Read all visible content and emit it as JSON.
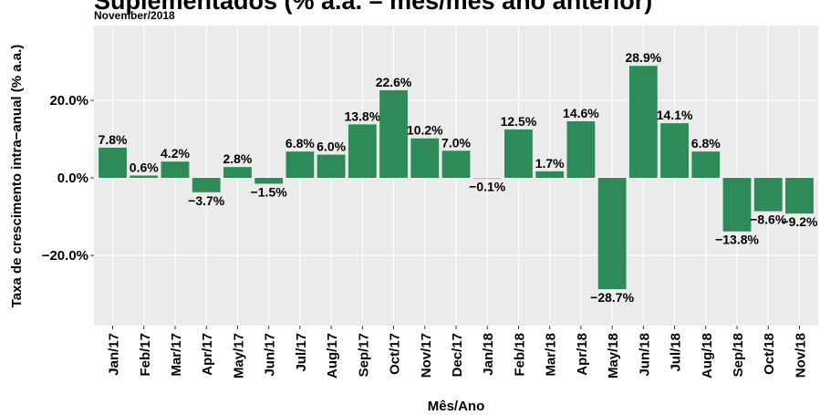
{
  "chart_data": {
    "type": "bar",
    "title": "Suplementados (% a.a. – mês/mês ano anterior)",
    "subtitle": "November/2018",
    "x_label": "Mês/Ano",
    "y_label": "Taxa de crescimento intra−anual (% a.a.)",
    "categories": [
      "Jan/17",
      "Feb/17",
      "Mar/17",
      "Apr/17",
      "May/17",
      "Jun/17",
      "Jul/17",
      "Aug/17",
      "Sep/17",
      "Oct/17",
      "Nov/17",
      "Dec/17",
      "Jan/18",
      "Feb/18",
      "Mar/18",
      "Apr/18",
      "May/18",
      "Jun/18",
      "Jul/18",
      "Aug/18",
      "Sep/18",
      "Oct/18",
      "Nov/18"
    ],
    "values": [
      7.8,
      0.6,
      4.2,
      -3.7,
      2.8,
      -1.5,
      6.8,
      6.0,
      13.8,
      22.6,
      10.2,
      7.0,
      -0.1,
      12.5,
      1.7,
      14.6,
      -28.7,
      28.9,
      14.1,
      6.8,
      -13.8,
      -8.6,
      -9.2
    ],
    "value_labels": [
      "7.8%",
      "0.6%",
      "4.2%",
      "−3.7%",
      "2.8%",
      "−1.5%",
      "6.8%",
      "6.0%",
      "13.8%",
      "22.6%",
      "10.2%",
      "7.0%",
      "−0.1%",
      "12.5%",
      "1.7%",
      "14.6%",
      "−28.7%",
      "28.9%",
      "14.1%",
      "6.8%",
      "−13.8%",
      "−8.6%",
      "−9.2%"
    ],
    "color": "#2e8b57",
    "ylim": [
      -38.1,
      39.3
    ],
    "yticks": [
      {
        "value": -20,
        "label": "−20.0%"
      },
      {
        "value": 0,
        "label": "0.0%"
      },
      {
        "value": 20,
        "label": "20.0%"
      }
    ],
    "grid": true
  }
}
